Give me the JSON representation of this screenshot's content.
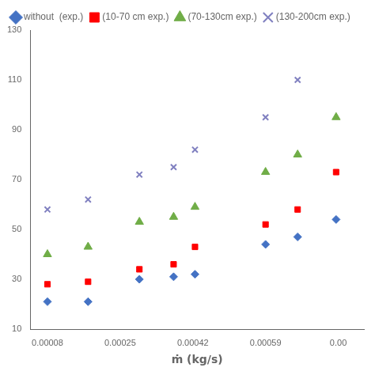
{
  "chart_data": {
    "type": "scatter",
    "xlabel": "ṁ (kg/s)",
    "xlim": [
      4e-05,
      0.00082
    ],
    "ylim": [
      10,
      130
    ],
    "xticks": [
      8e-05,
      0.00025,
      0.00042,
      0.00059,
      {
        "value": 0.00076,
        "label": "0.00"
      }
    ],
    "yticks": [
      10,
      30,
      50,
      70,
      90,
      110,
      130
    ],
    "grid": false,
    "legend": "upper left",
    "series": [
      {
        "name": "without  (exp.)",
        "color": "#4472C4",
        "marker": "diamond",
        "x": [
          8e-05,
          0.000175,
          0.000295,
          0.000375,
          0.000425,
          0.00059,
          0.000665,
          0.000755
        ],
        "values": [
          21,
          21,
          30,
          31,
          32,
          44,
          47,
          54
        ]
      },
      {
        "name": "(10-70 cm exp.)",
        "color": "#FF0000",
        "marker": "square",
        "x": [
          8e-05,
          0.000175,
          0.000295,
          0.000375,
          0.000425,
          0.00059,
          0.000665,
          0.000755
        ],
        "values": [
          28,
          29,
          34,
          36,
          43,
          52,
          58,
          73
        ]
      },
      {
        "name": "(70-130cm exp.)",
        "color": "#70AD47",
        "marker": "triangle",
        "x": [
          8e-05,
          0.000175,
          0.000295,
          0.000375,
          0.000425,
          0.00059,
          0.000665,
          0.000755
        ],
        "values": [
          40,
          43,
          53,
          55,
          59,
          73,
          80,
          95
        ]
      },
      {
        "name": "(130-200cm exp.)",
        "color": "#8080C0",
        "marker": "x",
        "x": [
          8e-05,
          0.000175,
          0.000295,
          0.000375,
          0.000425,
          0.00059,
          0.000665
        ],
        "values": [
          58,
          62,
          72,
          75,
          82,
          95,
          110
        ]
      }
    ]
  }
}
